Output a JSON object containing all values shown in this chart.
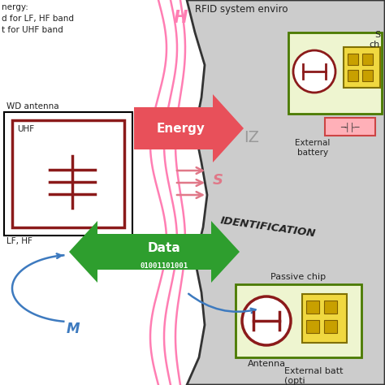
{
  "bg_color": "#ffffff",
  "rfid_env_label": "RFID system enviro",
  "iz_label": "IZ",
  "identification_label": "IDENTIFICATION",
  "energy_color": "#e8505a",
  "energy_label": "Energy",
  "data_color": "#2e9e2e",
  "data_label": "Data",
  "data_bits": "01001101001",
  "s_label": "S",
  "h_label": "H",
  "m_label": "M",
  "dark_red": "#8b1a1a",
  "uhf_label": "UHF",
  "lf_hf_label": "LF, HF",
  "wd_antenna_label": "WD antenna",
  "passive_chip_label": "Passive chip",
  "antenna_label": "Antenna",
  "external_battery_label": "External\nbattery",
  "external_batt2_label": "External batt\n(opti",
  "semi_label": "S\nch",
  "chip_edge_color": "#4a7a00",
  "chip_fill_color": "#eef5d0",
  "pink_color": "#ff7eb3",
  "blue_color": "#3d7abf",
  "blob_fill": "#cccccc",
  "blob_edge": "#333333",
  "battery_fill": "#ffb0b8",
  "battery_edge": "#cc4444",
  "text_dark": "#222222",
  "top_left_lines": [
    "nergy:",
    "d for LF, HF band",
    "t for UHF band"
  ]
}
